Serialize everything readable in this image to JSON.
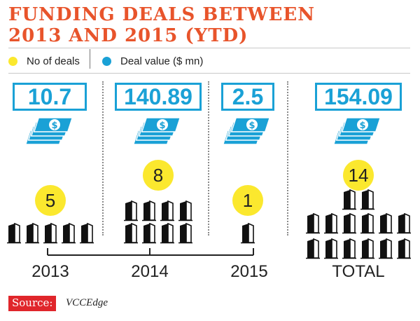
{
  "title_line1": "FUNDING DEALS BETWEEN",
  "title_line2": "2013 AND 2015 (YTD)",
  "legend": [
    {
      "label": "No of deals",
      "color": "#fbe82e"
    },
    {
      "label": "Deal value ($ mn)",
      "color": "#1aa1d6"
    }
  ],
  "colors": {
    "title": "#e8542b",
    "value": "#1aa1d6",
    "deals": "#fbe82e",
    "source": "#e0262b"
  },
  "chart_data": {
    "type": "table",
    "title": "FUNDING DEALS BETWEEN 2013 AND 2015 (YTD)",
    "categories": [
      "2013",
      "2014",
      "2015",
      "TOTAL"
    ],
    "series": [
      {
        "name": "No of deals",
        "values": [
          5,
          8,
          1,
          14
        ],
        "labels": [
          "5",
          "8",
          "1",
          "14"
        ]
      },
      {
        "name": "Deal value ($ mn)",
        "values": [
          10.7,
          140.89,
          2.5,
          154.09
        ],
        "labels": [
          "10.7",
          "140.89",
          "2.5",
          "154.09"
        ]
      }
    ]
  },
  "source_label": "Source:",
  "source_name": "VCCEdge"
}
